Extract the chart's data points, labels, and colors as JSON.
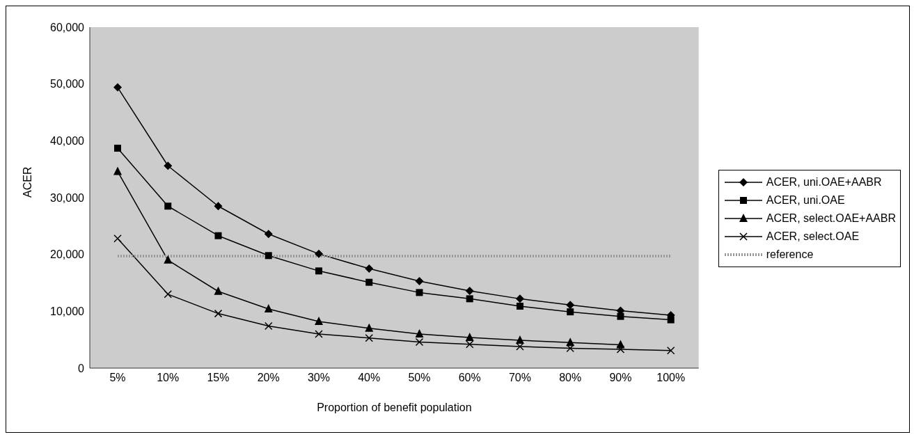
{
  "chart_data": {
    "type": "line",
    "xlabel": "Proportion of benefit population",
    "ylabel": "ACER",
    "categories": [
      "5%",
      "10%",
      "15%",
      "20%",
      "30%",
      "40%",
      "50%",
      "60%",
      "70%",
      "80%",
      "90%",
      "100%"
    ],
    "series": [
      {
        "name": "ACER, uni.OAE+AABR",
        "color": "#000000",
        "marker": "diamond",
        "values": [
          49400,
          35600,
          28500,
          23600,
          20100,
          17500,
          15300,
          13600,
          12200,
          11100,
          10100,
          9300
        ]
      },
      {
        "name": "ACER, uni.OAE",
        "color": "#000000",
        "marker": "square",
        "values": [
          38700,
          28500,
          23300,
          19800,
          17100,
          15100,
          13300,
          12200,
          10900,
          9900,
          9100,
          8500
        ]
      },
      {
        "name": "ACER, select.OAE+AABR",
        "color": "#000000",
        "marker": "triangle",
        "values": [
          34600,
          19000,
          13500,
          10400,
          8200,
          7000,
          6000,
          5400,
          4900,
          4500,
          4100,
          null
        ]
      },
      {
        "name": "ACER, select.OAE",
        "color": "#000000",
        "marker": "cross",
        "values": [
          22800,
          13000,
          9600,
          7400,
          6000,
          5300,
          4600,
          4200,
          3800,
          3500,
          3300,
          3100
        ]
      },
      {
        "name": "reference",
        "color": "#999999",
        "marker": "none",
        "line_style": "dotted",
        "values": [
          19700,
          19700,
          19700,
          19700,
          19700,
          19700,
          19700,
          19700,
          19700,
          19700,
          19700,
          19700
        ]
      }
    ],
    "ylim": [
      0,
      60000
    ],
    "yticks": [
      {
        "value": 0,
        "label": "0"
      },
      {
        "value": 10000,
        "label": "10,000"
      },
      {
        "value": 20000,
        "label": "20,000"
      },
      {
        "value": 30000,
        "label": "30,000"
      },
      {
        "value": 40000,
        "label": "40,000"
      },
      {
        "value": 50000,
        "label": "50,000"
      },
      {
        "value": 60000,
        "label": "60,000"
      }
    ],
    "grid": false,
    "legend": "right",
    "line_style": "solid"
  }
}
